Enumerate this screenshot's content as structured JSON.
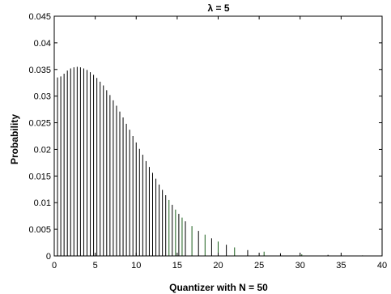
{
  "chart_data": {
    "type": "bar",
    "title": "λ = 5",
    "xlabel": "Quantizer with N = 50",
    "ylabel": "Probability",
    "xlim": [
      0,
      40
    ],
    "ylim": [
      0,
      0.045
    ],
    "xticks": [
      "0",
      "5",
      "10",
      "15",
      "20",
      "25",
      "30",
      "35",
      "40"
    ],
    "yticks": [
      "0",
      "0.005",
      "0.01",
      "0.015",
      "0.02",
      "0.025",
      "0.03",
      "0.035",
      "0.04",
      "0.045"
    ],
    "grid": false,
    "colors": {
      "stem": "#000000",
      "stem_alt": "#1a5e1a",
      "axis": "#000000"
    },
    "series": [
      {
        "x": [
          0.0,
          0.4,
          0.8,
          1.2,
          1.6,
          2.0,
          2.4,
          2.8,
          3.2,
          3.6,
          4.0,
          4.4,
          4.8,
          5.2,
          5.6,
          6.0,
          6.4,
          6.8,
          7.2,
          7.6,
          8.0,
          8.4,
          8.8,
          9.2,
          9.6,
          10.0,
          10.4,
          10.8,
          11.2,
          11.6,
          12.0,
          12.4,
          12.8,
          13.2,
          13.6,
          14.0,
          14.4,
          14.8,
          15.2,
          15.6,
          16.0,
          16.8,
          17.6,
          18.4,
          19.2,
          20.0,
          21.0,
          22.0,
          23.6,
          25.6,
          27.6,
          30.2,
          33.4,
          37.6
        ],
        "values": [
          0.0415,
          0.0335,
          0.0337,
          0.0342,
          0.0348,
          0.0352,
          0.0354,
          0.0355,
          0.0354,
          0.0352,
          0.0349,
          0.0345,
          0.034,
          0.0334,
          0.0327,
          0.032,
          0.0311,
          0.0302,
          0.0292,
          0.0282,
          0.0271,
          0.026,
          0.0248,
          0.0237,
          0.0225,
          0.0213,
          0.0201,
          0.019,
          0.0178,
          0.0167,
          0.0156,
          0.0145,
          0.0134,
          0.0124,
          0.0114,
          0.0105,
          0.0096,
          0.0087,
          0.0079,
          0.0072,
          0.0065,
          0.0056,
          0.0047,
          0.004,
          0.0033,
          0.0027,
          0.0021,
          0.0016,
          0.0011,
          0.0008,
          0.0005,
          0.0003,
          0.0002,
          0.0001
        ]
      }
    ]
  }
}
